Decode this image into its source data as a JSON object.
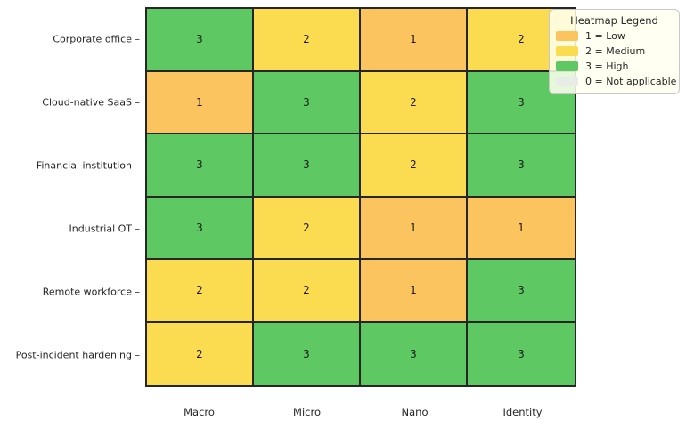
{
  "chart_data": {
    "type": "heatmap",
    "rows": [
      "Corporate office",
      "Cloud-native SaaS",
      "Financial institution",
      "Industrial OT",
      "Remote workforce",
      "Post-incident hardening"
    ],
    "columns": [
      "Macro",
      "Micro",
      "Nano",
      "Identity"
    ],
    "values": [
      [
        3,
        2,
        1,
        2
      ],
      [
        1,
        3,
        2,
        3
      ],
      [
        3,
        3,
        2,
        3
      ],
      [
        3,
        2,
        1,
        1
      ],
      [
        2,
        2,
        1,
        3
      ],
      [
        2,
        3,
        3,
        3
      ]
    ],
    "value_colors": {
      "0": "#e8ece6",
      "1": "#fbc45f",
      "2": "#fbdc51",
      "3": "#5ec962"
    },
    "cell_border_color": "#262626",
    "y_tick_mark": "–",
    "grid": "on",
    "legend_position": "top-right"
  },
  "legend": {
    "title": "Heatmap Legend",
    "background": "#fffff0",
    "border_color": "#c8c8c8",
    "items": [
      {
        "value": 1,
        "label": "1 = Low",
        "color": "#fbc45f"
      },
      {
        "value": 2,
        "label": "2 = Medium",
        "color": "#fbdc51"
      },
      {
        "value": 3,
        "label": "3 = High",
        "color": "#5ec962"
      },
      {
        "value": 0,
        "label": "0 = Not applicable",
        "color": "#e8ece6"
      }
    ]
  }
}
